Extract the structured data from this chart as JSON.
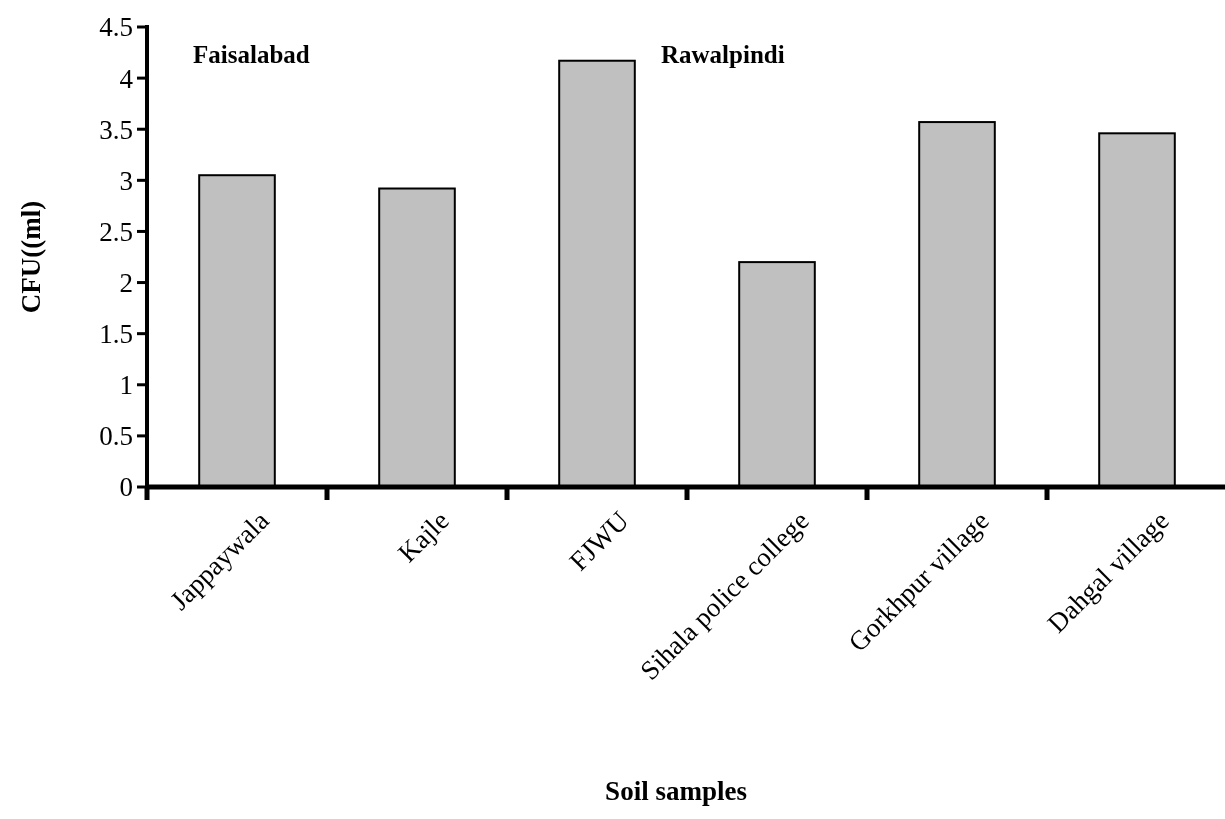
{
  "chart_data": {
    "type": "bar",
    "xlabel": "Soil samples",
    "ylabel": "CFU((ml)",
    "categories": [
      "Jappaywala",
      "Kajle",
      "FJWU",
      "Sihala police college",
      "Gorkhpur village",
      "Dahgal village"
    ],
    "values": [
      3.05,
      2.92,
      4.17,
      2.2,
      3.57,
      3.46
    ],
    "color": "#c0c0c0",
    "ylim": [
      0,
      4.5
    ],
    "yticks": [
      0,
      0.5,
      1,
      1.5,
      2,
      2.5,
      3,
      3.5,
      4,
      4.5
    ],
    "annotations": [
      "Faisalabad",
      "Rawalpindi"
    ]
  }
}
